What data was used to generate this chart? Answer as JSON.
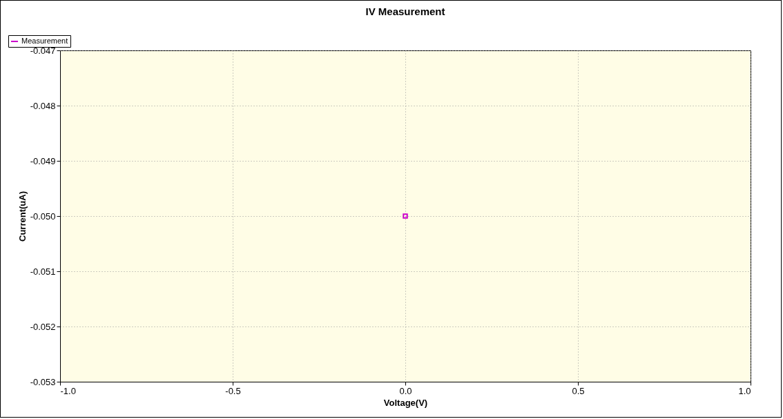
{
  "chart_data": {
    "type": "line",
    "title": "IV Measurement",
    "xlabel": "Voltage(V)",
    "ylabel": "Current(uA)",
    "x": [
      0
    ],
    "series": [
      {
        "name": "Measurement",
        "color": "#cc00cc",
        "values": [
          -0.05
        ]
      }
    ],
    "xlim": [
      -1,
      1
    ],
    "ylim": [
      -0.053,
      -0.047
    ],
    "xticks": [
      {
        "value": -1,
        "label": "-1.0"
      },
      {
        "value": -0.5,
        "label": "-0.5"
      },
      {
        "value": 0,
        "label": "0.0"
      },
      {
        "value": 0.5,
        "label": "0.5"
      },
      {
        "value": 1,
        "label": "1.0"
      }
    ],
    "yticks": [
      {
        "value": -0.053,
        "label": "-0.053"
      },
      {
        "value": -0.052,
        "label": "-0.052"
      },
      {
        "value": -0.051,
        "label": "-0.051"
      },
      {
        "value": -0.05,
        "label": "-0.050"
      },
      {
        "value": -0.049,
        "label": "-0.049"
      },
      {
        "value": -0.048,
        "label": "-0.048"
      },
      {
        "value": -0.047,
        "label": "-0.047"
      }
    ],
    "grid": true,
    "legend": "top left",
    "marker": "square",
    "line_style": "solid"
  }
}
